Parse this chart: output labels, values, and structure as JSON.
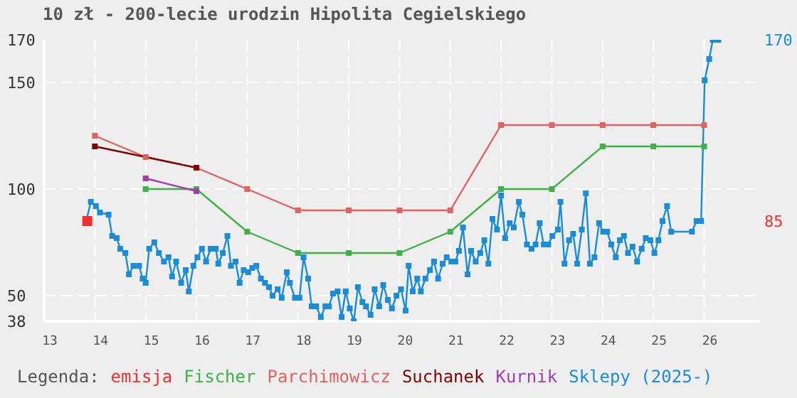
{
  "chart_data": {
    "type": "line",
    "title": "10 zł - 200-lecie urodzin Hipolita Cegielskiego",
    "legend_title": "Legenda:",
    "xlim": [
      13,
      27.1
    ],
    "xticks": [
      13,
      14,
      15,
      16,
      17,
      18,
      19,
      20,
      21,
      22,
      23,
      24,
      25,
      26
    ],
    "ylim": [
      38,
      170
    ],
    "yticks": [
      38,
      50,
      100,
      150,
      170
    ],
    "grid": true,
    "legend": "bottom",
    "marker": "square",
    "line_style": "solid",
    "annotations": [
      "170",
      "85"
    ],
    "series": [
      {
        "name": "emisja",
        "color": "#f03030",
        "x": [
          13.85
        ],
        "values": [
          85
        ]
      },
      {
        "name": "Fischer",
        "color": "#40b048",
        "x": [
          15,
          16,
          17,
          18,
          19,
          20,
          21,
          22,
          23,
          24,
          25,
          26
        ],
        "values": [
          100,
          100,
          80,
          70,
          70,
          70,
          80,
          100,
          100,
          120,
          120,
          120
        ]
      },
      {
        "name": "Parchimowicz",
        "color": "#e06262",
        "x": [
          14,
          15,
          16,
          17,
          18,
          19,
          20,
          21,
          22,
          23,
          24,
          25,
          26
        ],
        "values": [
          125,
          115,
          110,
          100,
          90,
          90,
          90,
          90,
          130,
          130,
          130,
          130,
          130
        ]
      },
      {
        "name": "Suchanek",
        "color": "#800000",
        "x": [
          14,
          16
        ],
        "values": [
          120,
          110
        ]
      },
      {
        "name": "Kurnik",
        "color": "#a040a8",
        "x": [
          15,
          16
        ],
        "values": [
          105,
          99
        ]
      },
      {
        "name": "Sklepy (2025-)",
        "color": "#1a8cd8",
        "x": [
          13.84,
          13.92,
          14.02,
          14.1,
          14.27,
          14.34,
          14.43,
          14.5,
          14.6,
          14.67,
          14.76,
          14.87,
          14.94,
          15.0,
          15.07,
          15.17,
          15.26,
          15.36,
          15.45,
          15.52,
          15.6,
          15.7,
          15.79,
          15.85,
          15.94,
          16.02,
          16.11,
          16.19,
          16.28,
          16.38,
          16.43,
          16.52,
          16.61,
          16.68,
          16.77,
          16.85,
          16.93,
          17.02,
          17.1,
          17.18,
          17.27,
          17.35,
          17.43,
          17.5,
          17.6,
          17.68,
          17.78,
          17.84,
          17.94,
          18.03,
          18.11,
          18.2,
          18.27,
          18.36,
          18.45,
          18.54,
          18.61,
          18.69,
          18.78,
          18.86,
          18.94,
          19.02,
          19.1,
          19.18,
          19.27,
          19.34,
          19.43,
          19.51,
          19.6,
          19.68,
          19.77,
          19.85,
          19.94,
          20.03,
          20.12,
          20.18,
          20.26,
          20.35,
          20.42,
          20.51,
          20.6,
          20.68,
          20.76,
          20.85,
          20.93,
          21.02,
          21.1,
          21.17,
          21.25,
          21.34,
          21.41,
          21.5,
          21.59,
          21.67,
          21.75,
          21.83,
          21.92,
          22.0,
          22.08,
          22.17,
          22.25,
          22.35,
          22.42,
          22.51,
          22.6,
          22.68,
          22.76,
          22.84,
          22.93,
          23.01,
          23.12,
          23.17,
          23.25,
          23.34,
          23.42,
          23.5,
          23.59,
          23.67,
          23.75,
          23.84,
          23.93,
          24.01,
          24.09,
          24.17,
          24.26,
          24.34,
          24.42,
          24.5,
          24.59,
          24.68,
          24.77,
          24.85,
          24.94,
          25.02,
          25.1,
          25.18,
          25.27,
          25.35,
          25.76,
          25.85,
          25.94,
          26.01,
          26.1,
          26.17,
          26.28
        ],
        "values": [
          86,
          94,
          92,
          89,
          88,
          78,
          77,
          72,
          70,
          60,
          64,
          64,
          58,
          56,
          72,
          75,
          70,
          66,
          68,
          59,
          66,
          56,
          62,
          52,
          64,
          68,
          72,
          66,
          72,
          72,
          65,
          70,
          78,
          64,
          66,
          56,
          62,
          61,
          63,
          64,
          58,
          56,
          54,
          50,
          53,
          49,
          61,
          56,
          49,
          49,
          68,
          58,
          45,
          45,
          40,
          45,
          45,
          51,
          52,
          40,
          52,
          44,
          38,
          54,
          47,
          45,
          41,
          53,
          45,
          55,
          48,
          44,
          50,
          53,
          43,
          64,
          52,
          58,
          52,
          58,
          62,
          66,
          58,
          65,
          68,
          66,
          66,
          71,
          82,
          60,
          71,
          66,
          70,
          76,
          65,
          86,
          81,
          97,
          77,
          84,
          82,
          94,
          88,
          74,
          72,
          74,
          84,
          74,
          74,
          78,
          81,
          94,
          65,
          76,
          79,
          65,
          81,
          98,
          65,
          68,
          84,
          80,
          80,
          74,
          68,
          76,
          78,
          70,
          73,
          66,
          72,
          77,
          76,
          70,
          76,
          85,
          92,
          80,
          80,
          85,
          85,
          151,
          161,
          170,
          170
        ]
      }
    ]
  }
}
